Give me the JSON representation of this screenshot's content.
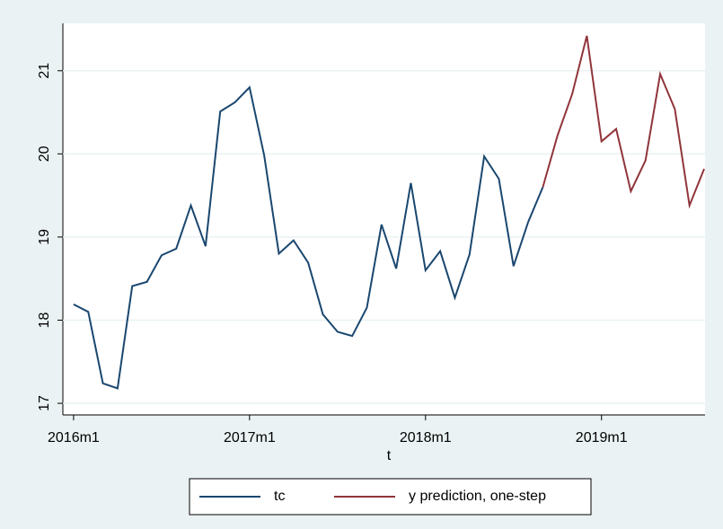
{
  "chart_data": {
    "type": "line",
    "x_label": "t",
    "x": [
      672,
      673,
      674,
      675,
      676,
      677,
      678,
      679,
      680,
      681,
      682,
      683,
      684,
      685,
      686,
      687,
      688,
      689,
      690,
      691,
      692,
      693,
      694,
      695,
      696,
      697,
      698,
      699,
      700,
      701,
      702,
      703,
      704,
      705,
      706,
      707,
      708,
      709,
      710,
      711,
      712,
      713,
      714,
      715
    ],
    "xlim": [
      671.27,
      715.06
    ],
    "xticks": [
      {
        "value": 672,
        "label": "2016m1"
      },
      {
        "value": 684,
        "label": "2017m1"
      },
      {
        "value": 696,
        "label": "2018m1"
      },
      {
        "value": 708,
        "label": "2019m1"
      }
    ],
    "ylim": [
      16.86,
      21.57
    ],
    "yticks": [
      17,
      18,
      19,
      20,
      21
    ],
    "grid": true,
    "legend": "bottom",
    "series": [
      {
        "name": "tc",
        "color": "#1a476f",
        "values": [
          18.19,
          18.1,
          17.24,
          17.18,
          18.41,
          18.46,
          18.78,
          18.86,
          19.38,
          18.89,
          20.51,
          20.62,
          20.8,
          19.98,
          18.8,
          18.96,
          18.69,
          18.07,
          17.86,
          17.81,
          18.15,
          19.15,
          18.62,
          19.65,
          18.6,
          18.83,
          18.27,
          18.79,
          19.97,
          19.7,
          18.65,
          19.18,
          19.6,
          null,
          null,
          null,
          null,
          null,
          null,
          null,
          null,
          null,
          null,
          null
        ]
      },
      {
        "name": "y prediction, one-step",
        "color": "#90353b",
        "values": [
          null,
          null,
          null,
          null,
          null,
          null,
          null,
          null,
          null,
          null,
          null,
          null,
          null,
          null,
          null,
          null,
          null,
          null,
          null,
          null,
          null,
          null,
          null,
          null,
          null,
          null,
          null,
          null,
          null,
          null,
          null,
          null,
          19.6,
          20.22,
          20.72,
          21.42,
          20.15,
          20.3,
          19.55,
          19.92,
          20.96,
          20.54,
          19.38,
          19.82
        ]
      }
    ]
  }
}
